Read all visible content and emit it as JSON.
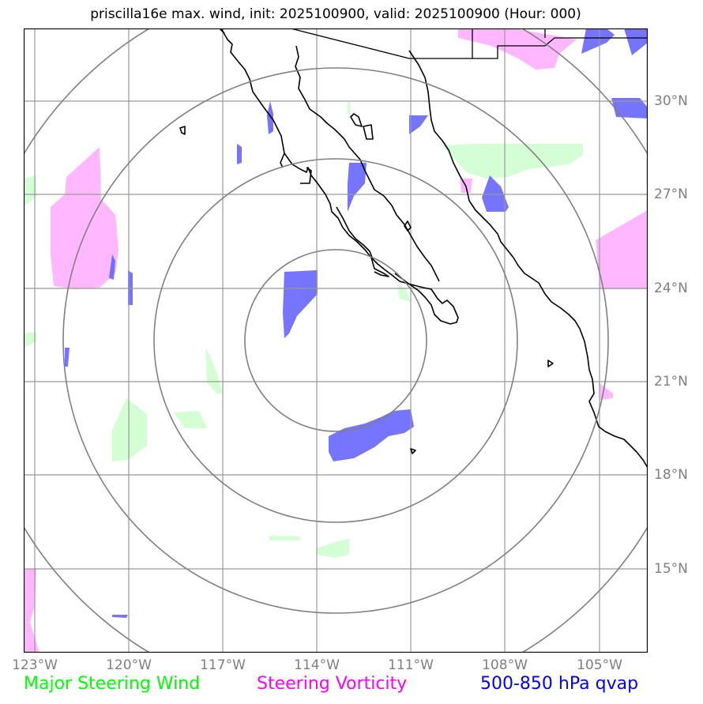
{
  "title": "priscilla16e max. wind, init: 2025100900, valid: 2025100900 (Hour: 000)",
  "map": {
    "lon_labels": [
      "123°W",
      "120°W",
      "117°W",
      "114°W",
      "111°W",
      "108°W",
      "105°W"
    ],
    "lat_labels": [
      "30°N",
      "27°N",
      "24°N",
      "21°N",
      "18°N",
      "15°N"
    ],
    "range_ring_count": 4,
    "colors": {
      "steering_wind": "#ccffcc",
      "steering_vorticity": "#ff99ff",
      "qvap": "#6666ff",
      "rings": "#808080",
      "grid": "#999999",
      "coast": "#000000"
    }
  },
  "legend": {
    "steering_wind": {
      "label": "Major Steering Wind",
      "color": "#00ff00"
    },
    "steering_vorticity": {
      "label": "Steering Vorticity",
      "color": "#ff00ff"
    },
    "qvap": {
      "label": "500-850 hPa qvap",
      "color": "#0000ff"
    }
  }
}
